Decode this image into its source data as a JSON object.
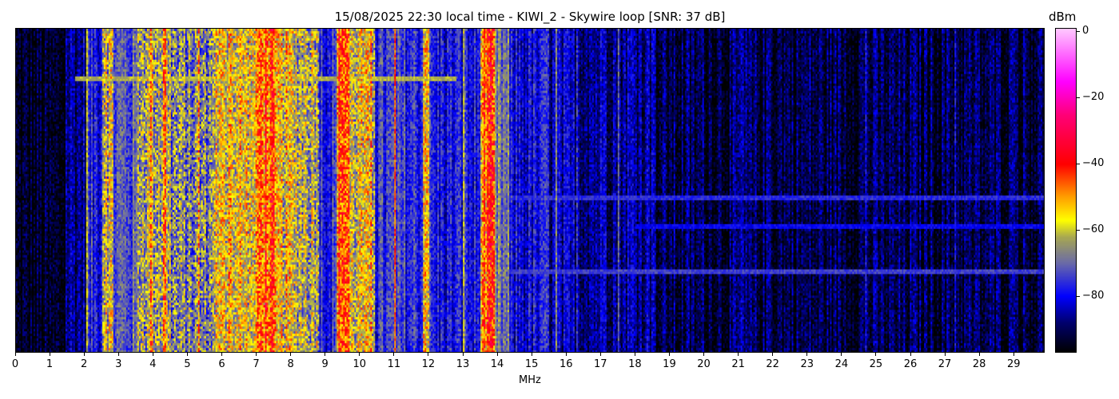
{
  "chart_data": {
    "type": "heatmap",
    "title": "15/08/2025 22:30 local time - KIWI_2 - Skywire loop [SNR: 37 dB]",
    "xlabel": "MHz",
    "ylabel": "",
    "xlim": [
      0,
      29.9
    ],
    "x_ticks": [
      0,
      1,
      2,
      3,
      4,
      5,
      6,
      7,
      8,
      9,
      10,
      11,
      12,
      13,
      14,
      15,
      16,
      17,
      18,
      19,
      20,
      21,
      22,
      23,
      24,
      25,
      26,
      27,
      28,
      29
    ],
    "colorbar": {
      "label": "dBm",
      "range": [
        -97,
        1
      ],
      "ticks": [
        0,
        -20,
        -40,
        -60,
        -80
      ],
      "colormap": [
        [
          "-97",
          "#000000"
        ],
        [
          "-88",
          "#00006e"
        ],
        [
          "-80",
          "#0000ff"
        ],
        [
          "-70",
          "#6a6aa8"
        ],
        [
          "-62",
          "#a8a850"
        ],
        [
          "-57",
          "#ffff00"
        ],
        [
          "-50",
          "#ffa000"
        ],
        [
          "-40",
          "#ff0000"
        ],
        [
          "-25",
          "#ff0078"
        ],
        [
          "-15",
          "#ff00ff"
        ],
        [
          "1",
          "#ffc8ff"
        ]
      ]
    },
    "band_levels_dbm": [
      [
        0,
        1.4,
        -95
      ],
      [
        1.4,
        2,
        -86
      ],
      [
        2,
        2.5,
        -78
      ],
      [
        2.5,
        2.8,
        -60
      ],
      [
        2.8,
        3.5,
        -72
      ],
      [
        3.5,
        4.5,
        -62
      ],
      [
        4.5,
        5.7,
        -68
      ],
      [
        5.7,
        7,
        -58
      ],
      [
        7,
        7.5,
        -46
      ],
      [
        7.5,
        8,
        -58
      ],
      [
        8,
        8.8,
        -61
      ],
      [
        8.8,
        9.3,
        -76
      ],
      [
        9.3,
        9.7,
        -45
      ],
      [
        9.7,
        10.4,
        -60
      ],
      [
        10.4,
        11.8,
        -76
      ],
      [
        11.8,
        12,
        -55
      ],
      [
        12,
        13.5,
        -79
      ],
      [
        13.5,
        13.9,
        -48
      ],
      [
        13.9,
        14.3,
        -70
      ],
      [
        14.3,
        15.5,
        -81
      ],
      [
        15.5,
        18.5,
        -85
      ],
      [
        18.5,
        29.9,
        -91
      ]
    ],
    "carriers_mhz_dbm": [
      [
        2.05,
        -60
      ],
      [
        2.6,
        -55
      ],
      [
        3.9,
        -45
      ],
      [
        4.3,
        -40
      ],
      [
        5.3,
        -50
      ],
      [
        6.2,
        -45
      ],
      [
        6.5,
        -50
      ],
      [
        7.25,
        -38
      ],
      [
        9.5,
        -38
      ],
      [
        10.0,
        -50
      ],
      [
        10.3,
        -48
      ],
      [
        11.0,
        -45
      ],
      [
        11.9,
        -48
      ],
      [
        13.0,
        -60
      ],
      [
        13.7,
        -40
      ],
      [
        13.8,
        -38
      ],
      [
        14.05,
        -65
      ],
      [
        15.4,
        -68
      ],
      [
        15.7,
        -66
      ],
      [
        16.3,
        -75
      ],
      [
        17.1,
        -75
      ],
      [
        17.5,
        -70
      ],
      [
        18.5,
        -76
      ],
      [
        21.1,
        -78
      ],
      [
        21.9,
        -80
      ],
      [
        24.7,
        -80
      ],
      [
        27.3,
        -80
      ],
      [
        29.0,
        -80
      ]
    ],
    "horizontal_lines": [
      {
        "time_fraction": 0.15,
        "mhz": [
          1.7,
          12.8
        ],
        "dbm": -62
      },
      {
        "time_fraction": 0.52,
        "mhz": [
          14,
          29.9
        ],
        "dbm": -76
      },
      {
        "time_fraction": 0.61,
        "mhz": [
          18,
          29.9
        ],
        "dbm": -80
      },
      {
        "time_fraction": 0.75,
        "mhz": [
          14,
          29.9
        ],
        "dbm": -74
      }
    ],
    "grid": false
  }
}
